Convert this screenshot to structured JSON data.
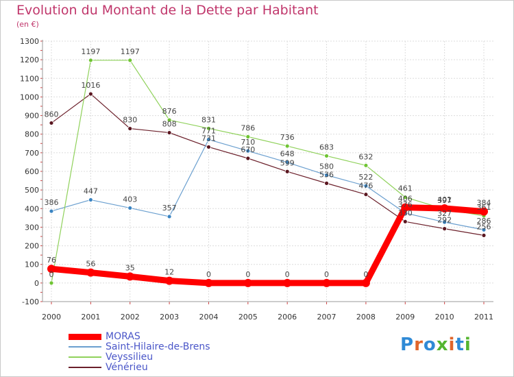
{
  "header": {
    "title": "Evolution du Montant de la Dette par Habitant",
    "subtitle": "(en €)"
  },
  "logo": {
    "text": "Proxiti",
    "letter_colors": [
      "#2f8ad6",
      "#e0652a",
      "#2f8ad6",
      "#55b530",
      "#e0652a",
      "#2f8ad6",
      "#55b530"
    ]
  },
  "chart_data": {
    "type": "line",
    "title": "Evolution du Montant de la Dette par Habitant",
    "subtitle": "(en €)",
    "xlabel": "",
    "ylabel": "",
    "categories": [
      "2000",
      "2001",
      "2002",
      "2003",
      "2004",
      "2005",
      "2006",
      "2007",
      "2008",
      "2009",
      "2010",
      "2011"
    ],
    "ylim": [
      -100,
      1300
    ],
    "yticks": [
      -100,
      0,
      100,
      200,
      300,
      400,
      500,
      600,
      700,
      800,
      900,
      1000,
      1100,
      1200,
      1300
    ],
    "grid": true,
    "legend_position": "bottom",
    "series": [
      {
        "name": "MORAS",
        "color": "#ff0000",
        "values": [
          76,
          56,
          35,
          12,
          0,
          0,
          0,
          0,
          0,
          406,
          401,
          384
        ]
      },
      {
        "name": "Saint-Hilaire-de-Brens",
        "color": "#6a9fcf",
        "values": [
          386,
          447,
          403,
          357,
          771,
          710,
          648,
          580,
          522,
          376,
          327,
          286
        ]
      },
      {
        "name": "Veyssilieu",
        "color": "#8fd15a",
        "values": [
          0,
          1197,
          1197,
          876,
          831,
          786,
          736,
          683,
          632,
          461,
          397,
          361
        ]
      },
      {
        "name": "Vénérieu",
        "color": "#6b1f2a",
        "values": [
          860,
          1016,
          830,
          808,
          731,
          670,
          599,
          536,
          476,
          330,
          292,
          256
        ]
      }
    ]
  }
}
